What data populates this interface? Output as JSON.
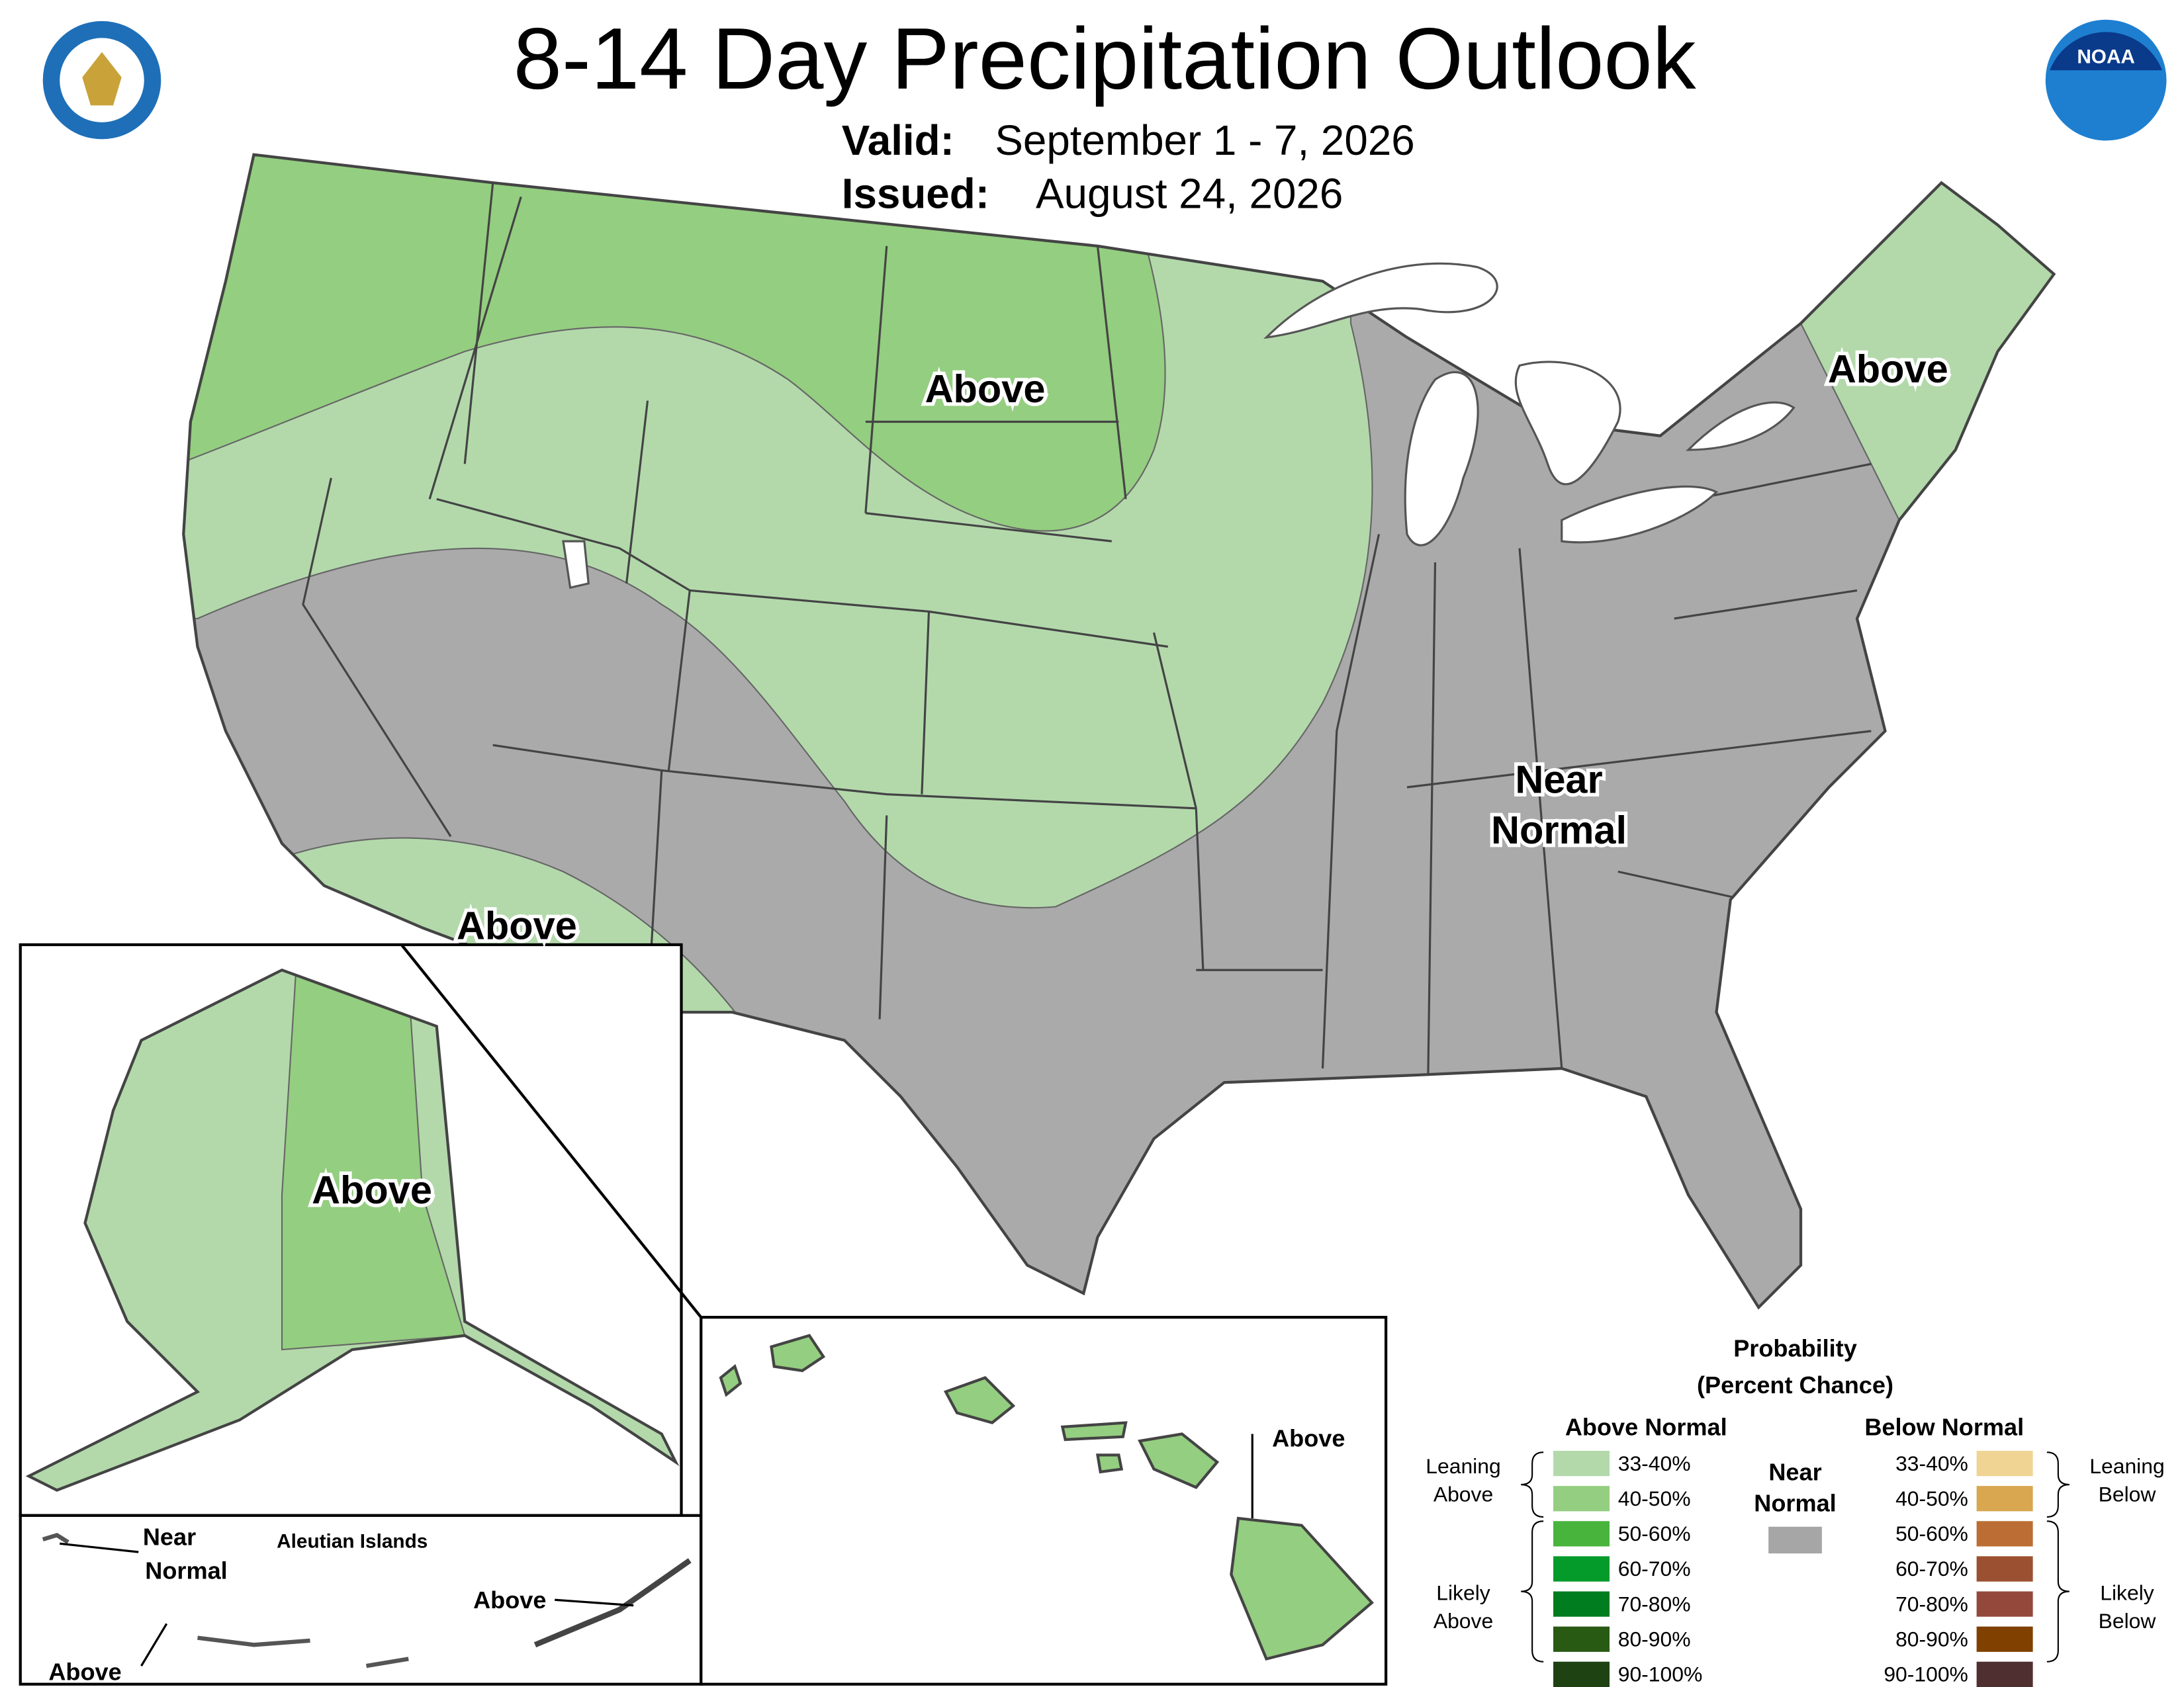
{
  "header": {
    "title": "8-14 Day Precipitation Outlook",
    "valid_label": "Valid:",
    "valid": "September 1 - 7, 2026",
    "issued_label": "Issued:",
    "issued": "August 24, 2026"
  },
  "logos": {
    "noaa": "NOAA"
  },
  "map_labels": {
    "north_central": "Above",
    "northeast": "Above",
    "southwest": "Above",
    "alaska": "Above",
    "near_normal": [
      "Near",
      "Normal"
    ],
    "hawaii": "Above",
    "aleutian_title": "Aleutian Islands",
    "aleutian_near_normal": [
      "Near",
      "Normal"
    ],
    "aleutian_east": "Above",
    "aleutian_west": "Above"
  },
  "legend": {
    "title": [
      "Probability",
      "(Percent Chance)"
    ],
    "near_normal": {
      "heading": [
        "Near",
        "Normal"
      ],
      "color": "#a6a6a6"
    },
    "above": {
      "heading": "Above Normal",
      "leaning": [
        "Leaning",
        "Above"
      ],
      "likely": [
        "Likely",
        "Above"
      ],
      "items": [
        {
          "label": "33-40%",
          "color": "#b3d9ab"
        },
        {
          "label": "40-50%",
          "color": "#94ce80"
        },
        {
          "label": "50-60%",
          "color": "#48b43c"
        },
        {
          "label": "60-70%",
          "color": "#059b2a"
        },
        {
          "label": "70-80%",
          "color": "#007d1e"
        },
        {
          "label": "80-90%",
          "color": "#285a14"
        },
        {
          "label": "90-100%",
          "color": "#1e4212"
        }
      ]
    },
    "below": {
      "heading": "Below Normal",
      "leaning": [
        "Leaning",
        "Below"
      ],
      "likely": [
        "Likely",
        "Below"
      ],
      "items": [
        {
          "label": "33-40%",
          "color": "#f0d493"
        },
        {
          "label": "40-50%",
          "color": "#d8a750"
        },
        {
          "label": "50-60%",
          "color": "#bb6d33"
        },
        {
          "label": "60-70%",
          "color": "#9b5031"
        },
        {
          "label": "70-80%",
          "color": "#93483b"
        },
        {
          "label": "80-90%",
          "color": "#804000"
        },
        {
          "label": "90-100%",
          "color": "#4f2f2f"
        }
      ]
    }
  }
}
